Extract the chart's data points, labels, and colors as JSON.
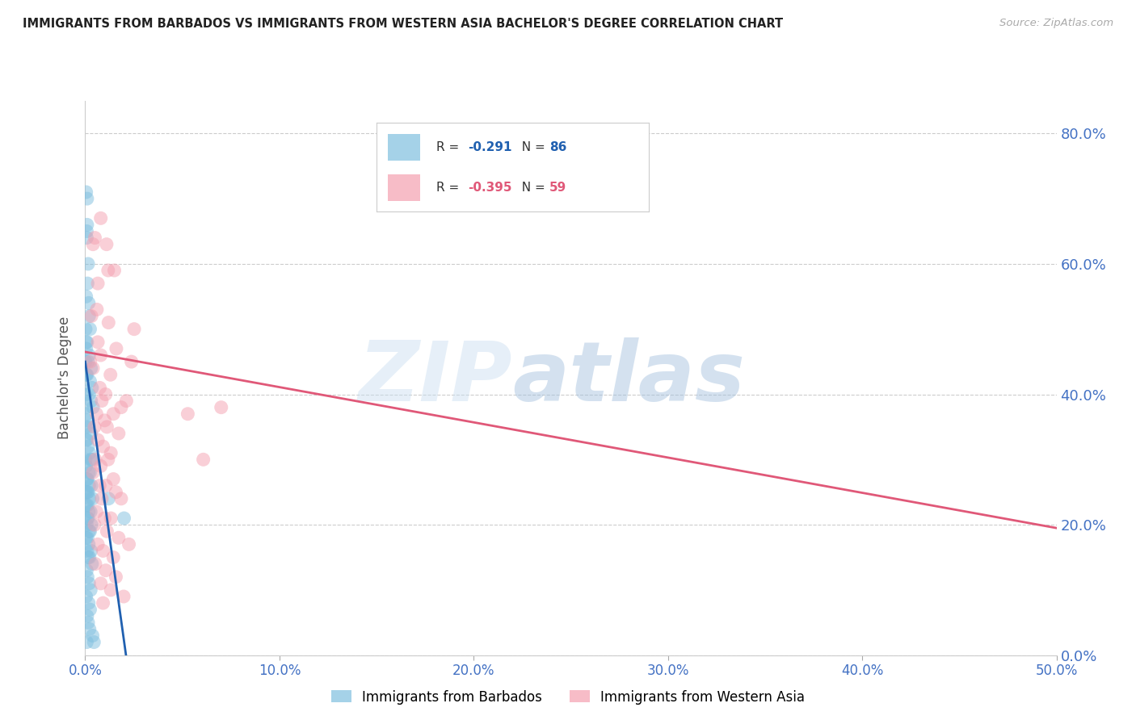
{
  "title": "IMMIGRANTS FROM BARBADOS VS IMMIGRANTS FROM WESTERN ASIA BACHELOR'S DEGREE CORRELATION CHART",
  "source": "Source: ZipAtlas.com",
  "ylabel": "Bachelor's Degree",
  "x_tick_labels": [
    "0.0%",
    "10.0%",
    "20.0%",
    "30.0%",
    "40.0%",
    "50.0%"
  ],
  "x_tick_values": [
    0,
    10,
    20,
    30,
    40,
    50
  ],
  "y_tick_labels": [
    "0.0%",
    "20.0%",
    "40.0%",
    "60.0%",
    "80.0%"
  ],
  "y_tick_values": [
    0,
    20,
    40,
    60,
    80
  ],
  "xlim": [
    0,
    50
  ],
  "ylim": [
    0,
    85
  ],
  "color_blue": "#7fbfdf",
  "color_pink": "#f4a0b0",
  "color_trendline_blue": "#2060b0",
  "color_trendline_pink": "#e05878",
  "color_axis_labels": "#4472c4",
  "blue_trend_x": [
    0,
    2.1
  ],
  "blue_trend_y": [
    45,
    0
  ],
  "pink_trend_x": [
    0,
    50
  ],
  "pink_trend_y": [
    46.5,
    19.5
  ],
  "blue_scatter": [
    [
      0.05,
      71
    ],
    [
      0.1,
      66
    ],
    [
      0.08,
      64
    ],
    [
      0.15,
      60
    ],
    [
      0.12,
      57
    ],
    [
      0.18,
      54
    ],
    [
      0.2,
      52
    ],
    [
      0.25,
      50
    ],
    [
      0.1,
      48
    ],
    [
      0.05,
      47
    ],
    [
      0.2,
      46
    ],
    [
      0.15,
      45
    ],
    [
      0.3,
      44
    ],
    [
      0.1,
      43
    ],
    [
      0.25,
      42
    ],
    [
      0.35,
      41
    ],
    [
      0.2,
      40
    ],
    [
      0.3,
      39
    ],
    [
      0.4,
      38
    ],
    [
      0.08,
      37
    ],
    [
      0.12,
      36
    ],
    [
      0.2,
      35
    ],
    [
      0.3,
      34
    ],
    [
      0.1,
      33
    ],
    [
      0.15,
      32
    ],
    [
      0.22,
      31
    ],
    [
      0.28,
      30
    ],
    [
      0.35,
      30
    ],
    [
      0.05,
      29
    ],
    [
      0.18,
      28
    ],
    [
      0.25,
      28
    ],
    [
      0.12,
      27
    ],
    [
      0.08,
      27
    ],
    [
      0.32,
      26
    ],
    [
      0.2,
      26
    ],
    [
      0.1,
      25
    ],
    [
      0.15,
      25
    ],
    [
      0.22,
      24
    ],
    [
      0.38,
      24
    ],
    [
      0.05,
      23
    ],
    [
      0.12,
      23
    ],
    [
      0.18,
      22
    ],
    [
      0.28,
      22
    ],
    [
      0.1,
      21
    ],
    [
      0.15,
      21
    ],
    [
      0.32,
      20
    ],
    [
      0.08,
      20
    ],
    [
      0.2,
      19
    ],
    [
      0.25,
      19
    ],
    [
      0.05,
      18
    ],
    [
      0.12,
      18
    ],
    [
      0.18,
      17
    ],
    [
      0.3,
      16
    ],
    [
      0.1,
      16
    ],
    [
      0.15,
      15
    ],
    [
      0.22,
      15
    ],
    [
      0.35,
      14
    ],
    [
      0.08,
      13
    ],
    [
      0.12,
      12
    ],
    [
      0.2,
      11
    ],
    [
      0.28,
      10
    ],
    [
      0.05,
      9
    ],
    [
      0.18,
      8
    ],
    [
      0.25,
      7
    ],
    [
      0.1,
      6
    ],
    [
      0.15,
      5
    ],
    [
      0.22,
      4
    ],
    [
      0.38,
      3
    ],
    [
      0.08,
      2
    ],
    [
      1.2,
      24
    ],
    [
      2.0,
      21
    ],
    [
      0.02,
      50
    ],
    [
      0.02,
      45
    ],
    [
      0.02,
      40
    ],
    [
      0.02,
      35
    ],
    [
      0.02,
      30
    ],
    [
      0.02,
      25
    ],
    [
      0.05,
      55
    ],
    [
      0.05,
      48
    ],
    [
      0.05,
      43
    ],
    [
      0.05,
      38
    ],
    [
      0.05,
      33
    ],
    [
      0.45,
      2
    ],
    [
      0.08,
      65
    ],
    [
      0.1,
      70
    ]
  ],
  "pink_scatter": [
    [
      0.8,
      67
    ],
    [
      0.5,
      64
    ],
    [
      1.1,
      63
    ],
    [
      1.5,
      59
    ],
    [
      0.6,
      53
    ],
    [
      1.2,
      51
    ],
    [
      0.65,
      48
    ],
    [
      1.6,
      47
    ],
    [
      0.8,
      46
    ],
    [
      0.4,
      44
    ],
    [
      1.3,
      43
    ],
    [
      0.75,
      41
    ],
    [
      1.05,
      40
    ],
    [
      0.85,
      39
    ],
    [
      1.85,
      38
    ],
    [
      0.58,
      37
    ],
    [
      1.45,
      37
    ],
    [
      1.0,
      36
    ],
    [
      0.48,
      35
    ],
    [
      1.12,
      35
    ],
    [
      1.72,
      34
    ],
    [
      0.65,
      33
    ],
    [
      0.92,
      32
    ],
    [
      1.32,
      31
    ],
    [
      0.52,
      30
    ],
    [
      1.18,
      30
    ],
    [
      2.12,
      39
    ],
    [
      0.8,
      29
    ],
    [
      0.4,
      28
    ],
    [
      1.45,
      27
    ],
    [
      0.74,
      26
    ],
    [
      1.06,
      26
    ],
    [
      1.58,
      25
    ],
    [
      0.85,
      24
    ],
    [
      1.85,
      24
    ],
    [
      0.58,
      22
    ],
    [
      1.0,
      21
    ],
    [
      1.32,
      21
    ],
    [
      0.48,
      20
    ],
    [
      1.12,
      19
    ],
    [
      1.72,
      18
    ],
    [
      0.65,
      17
    ],
    [
      2.25,
      17
    ],
    [
      0.92,
      16
    ],
    [
      1.45,
      15
    ],
    [
      0.52,
      14
    ],
    [
      1.06,
      13
    ],
    [
      1.58,
      12
    ],
    [
      0.8,
      11
    ],
    [
      1.32,
      10
    ],
    [
      1.98,
      9
    ],
    [
      0.92,
      8
    ],
    [
      0.65,
      57
    ],
    [
      0.26,
      45
    ],
    [
      0.32,
      52
    ],
    [
      2.38,
      45
    ],
    [
      2.52,
      50
    ],
    [
      0.4,
      63
    ],
    [
      5.28,
      37
    ],
    [
      1.18,
      59
    ],
    [
      6.08,
      30
    ],
    [
      7.0,
      38
    ]
  ]
}
